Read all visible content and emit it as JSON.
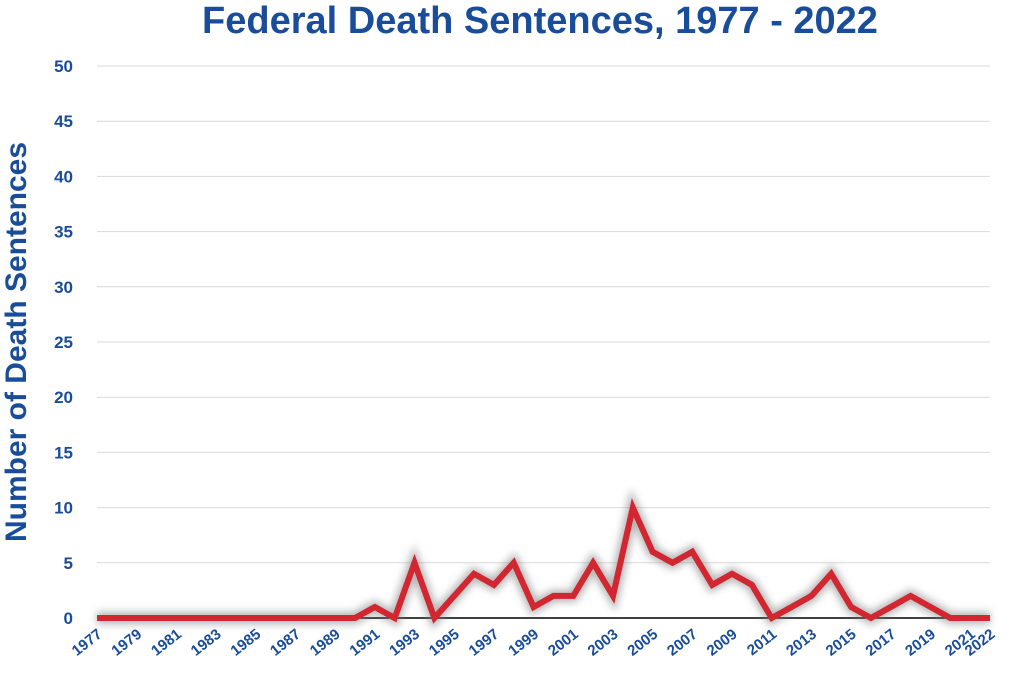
{
  "chart_data": {
    "type": "line",
    "title": "Federal Death Sentences, 1977 - 2022",
    "xlabel": "",
    "ylabel": "Number of Death Sentences",
    "x": [
      1977,
      1978,
      1979,
      1980,
      1981,
      1982,
      1983,
      1984,
      1985,
      1986,
      1987,
      1988,
      1989,
      1990,
      1991,
      1992,
      1993,
      1994,
      1995,
      1996,
      1997,
      1998,
      1999,
      2000,
      2001,
      2002,
      2003,
      2004,
      2005,
      2006,
      2007,
      2008,
      2009,
      2010,
      2011,
      2012,
      2013,
      2014,
      2015,
      2016,
      2017,
      2018,
      2019,
      2020,
      2021,
      2022
    ],
    "series": [
      {
        "values": [
          0,
          0,
          0,
          0,
          0,
          0,
          0,
          0,
          0,
          0,
          0,
          0,
          0,
          0,
          1,
          0,
          5,
          0,
          2,
          4,
          3,
          5,
          1,
          2,
          2,
          5,
          2,
          10,
          6,
          5,
          6,
          3,
          4,
          3,
          0,
          1,
          2,
          4,
          1,
          0,
          1,
          2,
          1,
          0,
          0,
          0
        ]
      }
    ],
    "x_tick_labels": [
      "1977",
      "1979",
      "1981",
      "1983",
      "1985",
      "1987",
      "1989",
      "1991",
      "1993",
      "1995",
      "1997",
      "1999",
      "2001",
      "2003",
      "2005",
      "2007",
      "2009",
      "2011",
      "2013",
      "2015",
      "2017",
      "2019",
      "2021",
      "2022"
    ],
    "y_tick_labels": [
      "0",
      "5",
      "10",
      "15",
      "20",
      "25",
      "30",
      "35",
      "40",
      "45",
      "50"
    ],
    "ylim": [
      0,
      50
    ],
    "xlim": [
      1977,
      2022
    ],
    "grid": true,
    "legend": "none",
    "colors": {
      "line": "#d22630",
      "text": "#1a4d99"
    }
  }
}
